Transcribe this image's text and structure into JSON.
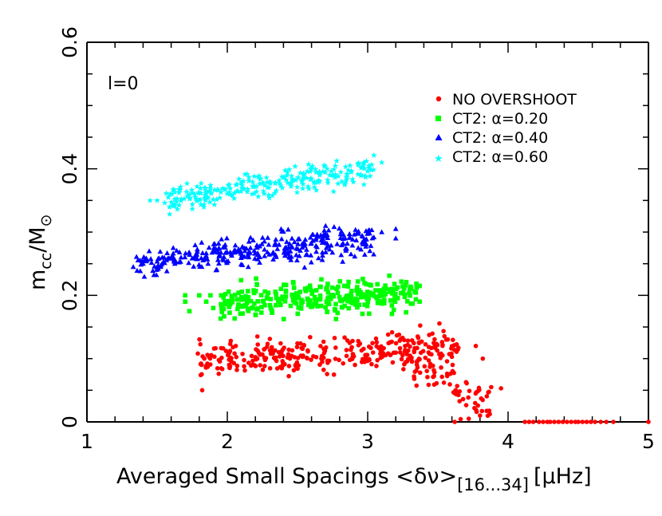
{
  "chart_data": {
    "type": "scatter",
    "annotation": "l=0",
    "xlabel": {
      "main": "Averaged Small Spacings <δν>",
      "sub": "[16...34]",
      "unit": "[μHz]"
    },
    "ylabel": {
      "main": "m",
      "sub": "cc",
      "sep": "/M",
      "sun": "⊙"
    },
    "xlim": [
      1,
      5
    ],
    "ylim": [
      0,
      0.6
    ],
    "x_ticks": [
      "1",
      "2",
      "3",
      "4",
      "5"
    ],
    "x_tick_values": [
      1,
      2,
      3,
      4,
      5
    ],
    "y_ticks": [
      "0",
      "0.2",
      "0.4",
      "0.6"
    ],
    "y_tick_values": [
      0,
      0.2,
      0.4,
      0.6
    ],
    "legend_position": "top-right",
    "series": [
      {
        "name": "NO OVERSHOOT",
        "color": "#ff0000",
        "marker": "circle",
        "clusters": [
          {
            "x_range": [
              1.8,
              3.65
            ],
            "y_line": [
              0.095,
              0.12
            ],
            "spread": 0.013,
            "count": 320
          },
          {
            "x_range": [
              3.3,
              3.9
            ],
            "y_line": [
              0.09,
              0.02
            ],
            "spread": 0.015,
            "count": 70
          }
        ],
        "points": [
          [
            1.79,
            0.108
          ],
          [
            1.86,
            0.087
          ],
          [
            2.02,
            0.088
          ],
          [
            2.04,
            0.118
          ],
          [
            2.06,
            0.12
          ],
          [
            3.62,
            0.0
          ],
          [
            3.72,
            0.005
          ],
          [
            3.8,
            0.01
          ],
          [
            3.88,
            0.055
          ],
          [
            3.95,
            0.053
          ],
          [
            3.77,
            0.12
          ],
          [
            3.82,
            0.1
          ]
        ],
        "zero_points_x": [
          4.12,
          4.15,
          4.18,
          4.22,
          4.25,
          4.28,
          4.3,
          4.33,
          4.36,
          4.39,
          4.42,
          4.45,
          4.48,
          4.5,
          4.53,
          4.56,
          4.59,
          4.62,
          4.66,
          4.7,
          4.75,
          5.0
        ]
      },
      {
        "name": "CT2: α=0.20",
        "color": "#00ff00",
        "marker": "square",
        "clusters": [
          {
            "x_range": [
              1.95,
              3.35
            ],
            "y_line": [
              0.185,
              0.205
            ],
            "spread": 0.012,
            "count": 330
          }
        ],
        "points": [
          [
            1.7,
            0.2
          ],
          [
            1.7,
            0.19
          ],
          [
            1.73,
            0.175
          ],
          [
            1.8,
            0.2
          ],
          [
            1.85,
            0.19
          ],
          [
            1.88,
            0.2
          ],
          [
            1.9,
            0.18
          ],
          [
            3.37,
            0.19
          ],
          [
            3.37,
            0.215
          ],
          [
            3.3,
            0.21
          ]
        ]
      },
      {
        "name": "CT2: α=0.40",
        "color": "#0000ff",
        "marker": "triangle",
        "clusters": [
          {
            "x_range": [
              1.35,
              3.05
            ],
            "y_line": [
              0.25,
              0.29
            ],
            "spread": 0.012,
            "count": 330
          }
        ],
        "points": [
          [
            1.33,
            0.245
          ],
          [
            1.4,
            0.25
          ],
          [
            3.2,
            0.305
          ],
          [
            3.1,
            0.3
          ],
          [
            3.2,
            0.29
          ]
        ]
      },
      {
        "name": "CT2: α=0.60",
        "color": "#00ffff",
        "marker": "star",
        "clusters": [
          {
            "x_range": [
              1.55,
              3.05
            ],
            "y_line": [
              0.35,
              0.4
            ],
            "spread": 0.01,
            "count": 260
          }
        ],
        "points": [
          [
            1.45,
            0.35
          ],
          [
            1.5,
            0.35
          ],
          [
            1.58,
            0.355
          ],
          [
            3.1,
            0.41
          ]
        ]
      }
    ]
  }
}
